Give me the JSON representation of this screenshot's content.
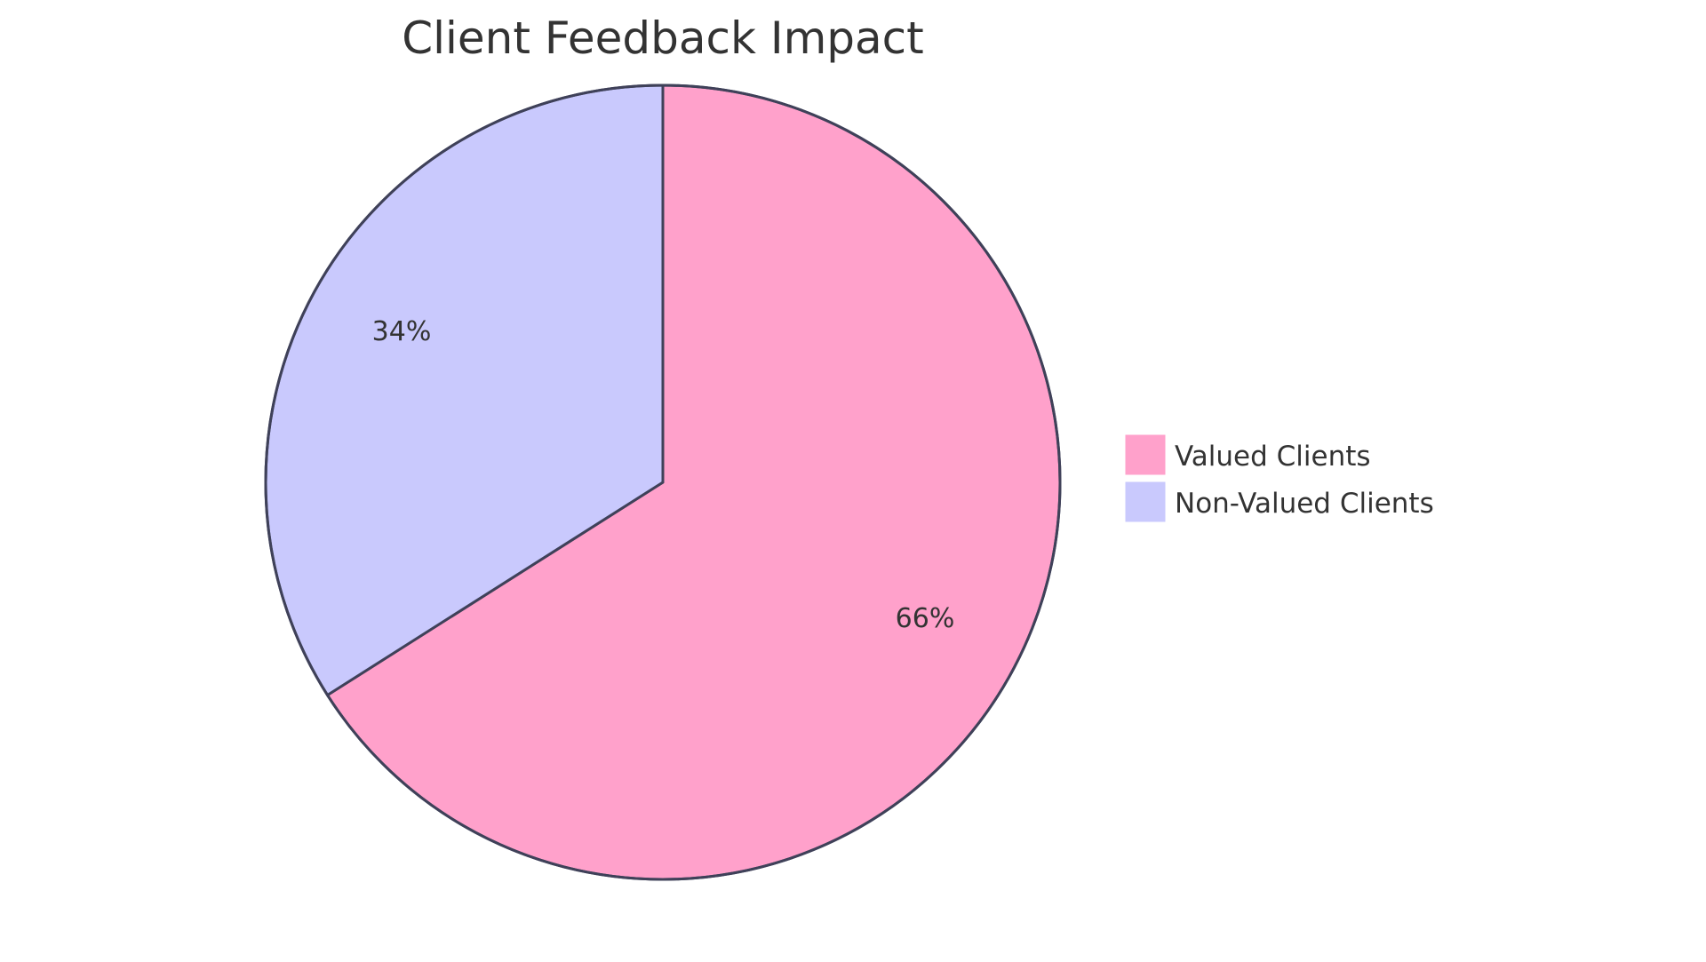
{
  "chart_data": {
    "type": "pie",
    "title": "Client Feedback Impact",
    "categories": [
      "Valued Clients",
      "Non-Valued Clients"
    ],
    "values": [
      66,
      34
    ],
    "labels": [
      "66%",
      "34%"
    ],
    "colors": [
      "#FFA1CB",
      "#C9C9FD"
    ],
    "stroke_color": "#3F4159",
    "legend_position": "right",
    "start_angle": "12 o'clock, clockwise"
  },
  "title": "Client Feedback Impact",
  "legend": {
    "items": [
      {
        "label": "Valued Clients",
        "color": "#FFA1CB"
      },
      {
        "label": "Non-Valued Clients",
        "color": "#C9C9FD"
      }
    ]
  },
  "slices": [
    {
      "label": "66%",
      "color": "#FFA1CB"
    },
    {
      "label": "34%",
      "color": "#C9C9FD"
    }
  ]
}
